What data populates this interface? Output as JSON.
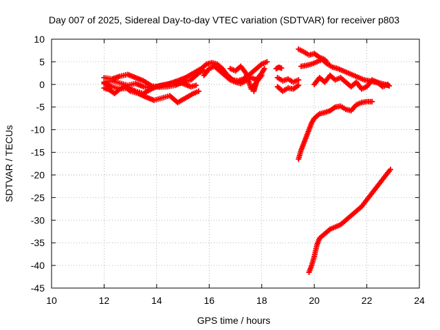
{
  "chart_data": {
    "type": "scatter",
    "title": "Day 007 of 2025, Sidereal Day-to-day VTEC variation (SDTVAR) for receiver p803",
    "xlabel": "GPS time / hours",
    "ylabel": "SDTVAR / TECUs",
    "xlim": [
      10,
      24
    ],
    "ylim": [
      -45,
      10
    ],
    "xticks": [
      10,
      12,
      14,
      16,
      18,
      20,
      22,
      24
    ],
    "yticks": [
      10,
      5,
      0,
      -5,
      -10,
      -15,
      -20,
      -25,
      -30,
      -35,
      -40,
      -45
    ],
    "grid": true,
    "legend": "none",
    "marker": "+",
    "color": "#ff0000",
    "series": [
      {
        "x": [
          12.0,
          12.3,
          12.6,
          12.9,
          13.2,
          13.5,
          13.8,
          14.1,
          14.4,
          14.7,
          15.0,
          15.3,
          15.6,
          15.8
        ],
        "y": [
          1.5,
          1.2,
          1.8,
          2.2,
          1.5,
          0.8,
          -0.3,
          -0.6,
          -0.5,
          -0.2,
          0.5,
          1.0,
          2.5,
          3.2
        ]
      },
      {
        "x": [
          12.0,
          12.3,
          12.6,
          12.9,
          13.2,
          13.5,
          13.8,
          14.1,
          14.4,
          14.7,
          15.0,
          15.3,
          15.5
        ],
        "y": [
          0.5,
          0.8,
          0.3,
          -0.2,
          0.2,
          -0.5,
          -0.8,
          -0.3,
          0.0,
          0.5,
          0.2,
          -0.5,
          -0.2
        ]
      },
      {
        "x": [
          12.0,
          12.2,
          12.4,
          12.6,
          12.8,
          13.0,
          13.3,
          13.6,
          13.9,
          14.2,
          14.5,
          14.8,
          15.1,
          15.4,
          15.6
        ],
        "y": [
          -0.8,
          -1.2,
          -2.0,
          -1.0,
          -0.5,
          -1.5,
          -2.0,
          -2.8,
          -3.5,
          -3.0,
          -2.5,
          -4.0,
          -3.0,
          -2.0,
          -1.5
        ]
      },
      {
        "x": [
          12.0,
          12.3,
          12.6,
          12.9,
          13.2,
          13.5,
          13.8,
          14.0,
          14.2,
          14.5,
          14.8,
          15.1,
          15.4,
          15.7,
          15.9,
          16.1,
          16.3,
          16.5,
          16.7,
          16.9,
          17.1,
          17.3,
          17.5,
          17.7,
          17.9,
          18.0,
          18.2
        ],
        "y": [
          0.2,
          -0.5,
          -1.0,
          -0.8,
          -1.5,
          -2.0,
          -1.0,
          -0.5,
          -0.2,
          0.2,
          0.8,
          1.5,
          2.5,
          3.5,
          4.5,
          4.8,
          4.5,
          3.5,
          2.0,
          1.0,
          0.8,
          1.2,
          2.0,
          3.0,
          4.0,
          4.5,
          5.0
        ]
      },
      {
        "x": [
          15.8,
          16.0,
          16.2,
          16.4,
          16.6,
          16.8,
          17.0,
          17.2,
          17.4,
          17.6,
          17.8,
          18.0,
          18.1
        ],
        "y": [
          2.0,
          3.5,
          4.0,
          3.0,
          2.0,
          1.0,
          0.5,
          0.2,
          0.8,
          1.5,
          1.0,
          2.5,
          3.5
        ]
      },
      {
        "x": [
          16.8,
          17.0,
          17.2,
          17.4,
          17.6,
          17.8,
          18.0
        ],
        "y": [
          3.5,
          3.0,
          4.0,
          2.5,
          -1.0,
          0.5,
          2.0
        ]
      },
      {
        "x": [
          17.7,
          17.75,
          17.8,
          17.85
        ],
        "y": [
          -1.5,
          -0.5,
          0.5,
          1.5
        ]
      },
      {
        "x": [
          18.55,
          18.65,
          18.75
        ],
        "y": [
          3.5,
          3.8,
          3.6
        ]
      },
      {
        "x": [
          18.6,
          18.8,
          19.0,
          19.2,
          19.4
        ],
        "y": [
          1.5,
          0.8,
          1.2,
          0.5,
          1.0
        ]
      },
      {
        "x": [
          18.6,
          18.8,
          19.0,
          19.2,
          19.4
        ],
        "y": [
          -0.5,
          -1.5,
          -0.8,
          -1.0,
          -0.2
        ]
      },
      {
        "x": [
          19.4,
          19.6,
          19.8,
          20.0,
          20.2,
          20.4,
          20.5
        ],
        "y": [
          7.8,
          7.2,
          6.5,
          6.8,
          6.0,
          5.5,
          4.8
        ]
      },
      {
        "x": [
          19.5,
          19.7,
          19.9,
          20.1,
          20.3,
          20.5,
          20.7,
          20.9,
          21.1,
          21.3,
          21.5,
          21.7,
          21.9,
          22.1,
          22.3,
          22.5,
          22.7,
          22.85
        ],
        "y": [
          4.0,
          4.2,
          4.5,
          5.0,
          5.5,
          4.5,
          3.8,
          3.5,
          3.0,
          2.5,
          2.0,
          1.5,
          1.0,
          0.8,
          0.5,
          0.3,
          0.0,
          -0.3
        ]
      },
      {
        "x": [
          20.0,
          20.2,
          20.4,
          20.6,
          20.8,
          21.0,
          21.2,
          21.4,
          21.6,
          21.8,
          22.0,
          22.2,
          22.4,
          22.6,
          22.8
        ],
        "y": [
          0.0,
          1.5,
          0.5,
          2.0,
          1.0,
          1.5,
          0.5,
          -0.5,
          0.5,
          -1.0,
          -0.5,
          1.0,
          0.5,
          -0.5,
          0.0
        ]
      },
      {
        "x": [
          19.4,
          19.5,
          19.6,
          19.7,
          19.8,
          19.9,
          20.0,
          20.2,
          20.4,
          20.6,
          20.8,
          21.0,
          21.2,
          21.4,
          21.6,
          21.8,
          22.0,
          22.2
        ],
        "y": [
          -16.5,
          -14.5,
          -13.0,
          -11.5,
          -10.0,
          -8.5,
          -7.5,
          -6.5,
          -6.2,
          -5.8,
          -5.0,
          -4.8,
          -5.5,
          -5.8,
          -4.5,
          -4.0,
          -3.8,
          -3.8
        ]
      },
      {
        "x": [
          19.8,
          19.9,
          20.0,
          20.1,
          20.2,
          20.4,
          20.6,
          20.8,
          21.0,
          21.2,
          21.4,
          21.6,
          21.8,
          22.0,
          22.2,
          22.4,
          22.6,
          22.8,
          22.9
        ],
        "y": [
          -41.5,
          -40.0,
          -38.0,
          -35.5,
          -34.0,
          -33.0,
          -32.0,
          -31.5,
          -31.0,
          -30.0,
          -29.0,
          -28.0,
          -27.0,
          -25.5,
          -24.0,
          -22.5,
          -21.0,
          -19.5,
          -18.8
        ]
      }
    ]
  }
}
